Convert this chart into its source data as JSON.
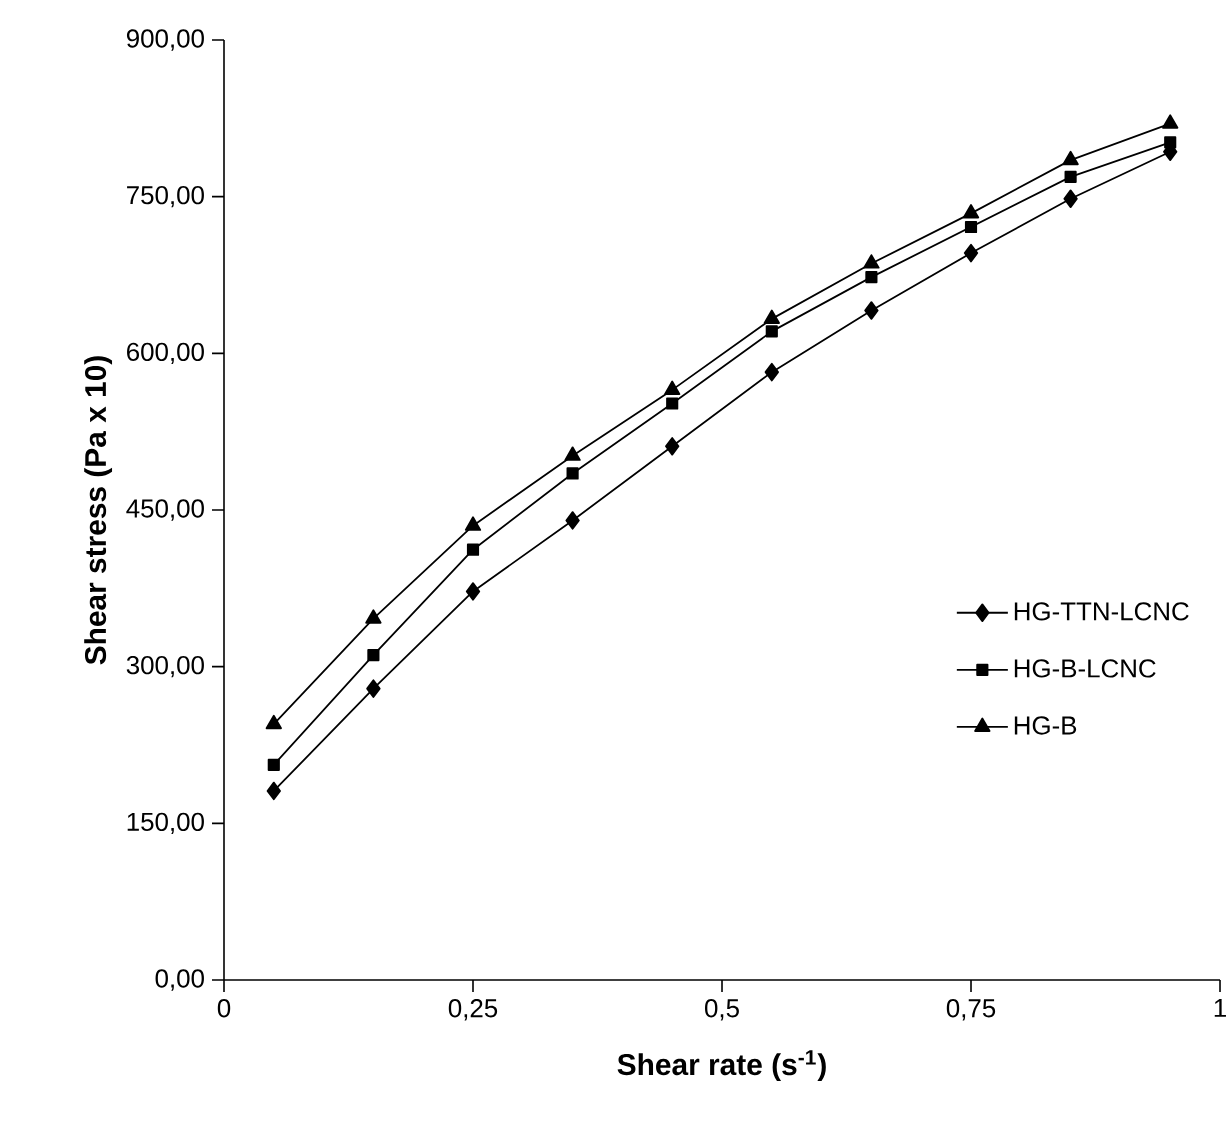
{
  "chart_data": {
    "type": "line",
    "xlabel": "Shear rate (s$^{-1}$)",
    "ylabel": "Shear stress  (Pa x 10)",
    "x": [
      0.05,
      0.15,
      0.25,
      0.35,
      0.45,
      0.55,
      0.65,
      0.75,
      0.85,
      0.95
    ],
    "series": [
      {
        "name": "HG-TTN-LCNC",
        "color": "#000000",
        "marker": "diamond",
        "values": [
          181,
          279,
          372,
          440,
          511,
          582,
          641,
          696,
          748,
          793
        ]
      },
      {
        "name": "HG-B-LCNC",
        "color": "#000000",
        "marker": "square",
        "values": [
          206,
          311,
          412,
          485,
          552,
          621,
          673,
          721,
          769,
          802
        ]
      },
      {
        "name": "HG-B",
        "color": "#000000",
        "marker": "triangle",
        "values": [
          245,
          346,
          435,
          502,
          565,
          633,
          686,
          734,
          785,
          820
        ]
      }
    ],
    "xlim": [
      0,
      1
    ],
    "ylim": [
      0,
      900
    ],
    "xticks": [
      0,
      {
        "value": 0.25,
        "label": "0,25"
      },
      {
        "value": 0.5,
        "label": "0,5"
      },
      {
        "value": 0.75,
        "label": "0,75"
      },
      1
    ],
    "yticks": [
      {
        "value": 0,
        "label": "0,00"
      },
      {
        "value": 150,
        "label": "150,00"
      },
      {
        "value": 300,
        "label": "300,00"
      },
      {
        "value": 450,
        "label": "450,00"
      },
      {
        "value": 600,
        "label": "600,00"
      },
      {
        "value": 750,
        "label": "750,00"
      },
      {
        "value": 900,
        "label": "900,00"
      }
    ],
    "grid": false,
    "legend": "right",
    "line_style": "solid"
  }
}
